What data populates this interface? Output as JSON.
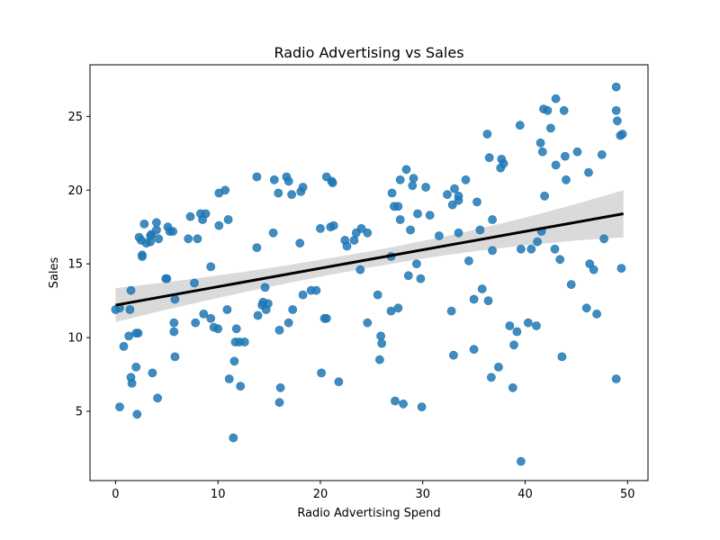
{
  "chart_data": {
    "type": "scatter",
    "title": "Radio Advertising vs Sales",
    "xlabel": "Radio Advertising Spend",
    "ylabel": "Sales",
    "xlim": [
      -2.5,
      52
    ],
    "ylim": [
      0.3,
      28.5
    ],
    "xticks": [
      0,
      10,
      20,
      30,
      40,
      50
    ],
    "yticks": [
      5,
      10,
      15,
      20,
      25
    ],
    "grid": false,
    "point_color": "#1f77b4",
    "regression": {
      "x_range": [
        0,
        49.6
      ],
      "y_range": [
        12.2,
        18.4
      ],
      "line_color": "#000000",
      "ci_color": "#d3d3d3",
      "ci_lower": [
        11.1,
        16.8
      ],
      "ci_upper": [
        13.4,
        20.0
      ]
    },
    "points": [
      [
        0.0,
        11.9
      ],
      [
        0.4,
        12.0
      ],
      [
        0.4,
        5.3
      ],
      [
        0.8,
        9.4
      ],
      [
        1.3,
        10.1
      ],
      [
        1.4,
        11.9
      ],
      [
        1.5,
        13.2
      ],
      [
        1.5,
        7.3
      ],
      [
        1.6,
        6.9
      ],
      [
        2.0,
        10.3
      ],
      [
        2.2,
        10.3
      ],
      [
        2.0,
        8.0
      ],
      [
        2.1,
        4.8
      ],
      [
        2.3,
        16.8
      ],
      [
        2.5,
        16.6
      ],
      [
        2.6,
        15.6
      ],
      [
        2.6,
        15.5
      ],
      [
        2.8,
        17.7
      ],
      [
        3.0,
        16.4
      ],
      [
        3.4,
        16.5
      ],
      [
        3.4,
        16.9
      ],
      [
        3.5,
        17.0
      ],
      [
        3.6,
        7.6
      ],
      [
        4.0,
        17.8
      ],
      [
        4.0,
        17.3
      ],
      [
        4.1,
        5.9
      ],
      [
        4.2,
        16.7
      ],
      [
        4.9,
        14.0
      ],
      [
        5.0,
        14.0
      ],
      [
        5.1,
        17.5
      ],
      [
        5.3,
        17.2
      ],
      [
        5.6,
        17.2
      ],
      [
        5.7,
        10.4
      ],
      [
        5.7,
        11.0
      ],
      [
        5.8,
        8.7
      ],
      [
        5.8,
        12.6
      ],
      [
        7.1,
        16.7
      ],
      [
        7.3,
        18.2
      ],
      [
        7.7,
        13.7
      ],
      [
        7.8,
        11.0
      ],
      [
        8.0,
        16.7
      ],
      [
        8.3,
        18.4
      ],
      [
        8.5,
        18.0
      ],
      [
        8.6,
        11.6
      ],
      [
        8.8,
        18.4
      ],
      [
        9.3,
        11.3
      ],
      [
        9.3,
        14.8
      ],
      [
        9.6,
        10.7
      ],
      [
        10.0,
        10.6
      ],
      [
        10.1,
        17.6
      ],
      [
        10.1,
        19.8
      ],
      [
        10.7,
        20.0
      ],
      [
        10.9,
        11.9
      ],
      [
        11.0,
        18.0
      ],
      [
        11.1,
        7.2
      ],
      [
        11.5,
        3.2
      ],
      [
        11.6,
        8.4
      ],
      [
        11.7,
        9.7
      ],
      [
        11.8,
        10.6
      ],
      [
        12.1,
        9.7
      ],
      [
        12.2,
        6.7
      ],
      [
        12.6,
        9.7
      ],
      [
        13.8,
        20.9
      ],
      [
        13.8,
        16.1
      ],
      [
        13.9,
        11.5
      ],
      [
        14.3,
        12.2
      ],
      [
        14.4,
        12.4
      ],
      [
        14.6,
        13.4
      ],
      [
        14.7,
        11.9
      ],
      [
        14.9,
        12.3
      ],
      [
        15.4,
        17.1
      ],
      [
        15.5,
        20.7
      ],
      [
        15.9,
        19.8
      ],
      [
        16.0,
        10.5
      ],
      [
        16.0,
        5.6
      ],
      [
        16.1,
        6.6
      ],
      [
        16.7,
        20.9
      ],
      [
        16.9,
        20.6
      ],
      [
        16.9,
        11.0
      ],
      [
        17.2,
        19.7
      ],
      [
        17.3,
        11.9
      ],
      [
        18.0,
        16.4
      ],
      [
        18.1,
        19.9
      ],
      [
        18.3,
        20.2
      ],
      [
        18.3,
        12.9
      ],
      [
        19.1,
        13.2
      ],
      [
        19.6,
        13.2
      ],
      [
        20.0,
        17.4
      ],
      [
        20.1,
        7.6
      ],
      [
        20.4,
        11.3
      ],
      [
        20.6,
        11.3
      ],
      [
        20.6,
        20.9
      ],
      [
        21.0,
        17.5
      ],
      [
        21.1,
        20.6
      ],
      [
        21.2,
        20.5
      ],
      [
        21.3,
        17.6
      ],
      [
        21.8,
        7.0
      ],
      [
        22.4,
        16.6
      ],
      [
        22.6,
        16.2
      ],
      [
        23.3,
        16.6
      ],
      [
        23.5,
        17.1
      ],
      [
        23.9,
        14.6
      ],
      [
        24.0,
        17.4
      ],
      [
        24.6,
        11.0
      ],
      [
        24.6,
        17.1
      ],
      [
        25.6,
        12.9
      ],
      [
        25.8,
        8.5
      ],
      [
        26.0,
        9.6
      ],
      [
        25.9,
        10.1
      ],
      [
        26.9,
        11.8
      ],
      [
        26.9,
        15.5
      ],
      [
        27.0,
        19.8
      ],
      [
        27.2,
        18.9
      ],
      [
        27.3,
        5.7
      ],
      [
        27.6,
        12.0
      ],
      [
        27.6,
        18.9
      ],
      [
        27.8,
        18.0
      ],
      [
        27.8,
        20.7
      ],
      [
        28.1,
        5.5
      ],
      [
        28.4,
        21.4
      ],
      [
        28.6,
        14.2
      ],
      [
        28.8,
        17.3
      ],
      [
        29.0,
        20.3
      ],
      [
        29.1,
        20.8
      ],
      [
        29.4,
        15.0
      ],
      [
        29.5,
        18.4
      ],
      [
        29.8,
        14.0
      ],
      [
        29.9,
        5.3
      ],
      [
        30.3,
        20.2
      ],
      [
        30.7,
        18.3
      ],
      [
        31.6,
        16.9
      ],
      [
        32.4,
        19.7
      ],
      [
        32.8,
        11.8
      ],
      [
        32.9,
        19.0
      ],
      [
        33.0,
        8.8
      ],
      [
        33.1,
        20.1
      ],
      [
        33.5,
        17.1
      ],
      [
        33.5,
        19.6
      ],
      [
        33.5,
        19.3
      ],
      [
        34.2,
        20.7
      ],
      [
        34.5,
        15.2
      ],
      [
        35.0,
        12.6
      ],
      [
        35.0,
        9.2
      ],
      [
        35.3,
        19.2
      ],
      [
        35.6,
        17.3
      ],
      [
        35.8,
        13.3
      ],
      [
        36.3,
        23.8
      ],
      [
        36.5,
        22.2
      ],
      [
        36.4,
        12.5
      ],
      [
        36.7,
        7.3
      ],
      [
        36.8,
        18.0
      ],
      [
        36.8,
        15.9
      ],
      [
        37.4,
        8.0
      ],
      [
        37.6,
        21.5
      ],
      [
        37.7,
        22.1
      ],
      [
        37.9,
        21.8
      ],
      [
        38.5,
        10.8
      ],
      [
        38.8,
        6.6
      ],
      [
        38.9,
        9.5
      ],
      [
        39.2,
        10.4
      ],
      [
        39.5,
        24.4
      ],
      [
        39.6,
        1.6
      ],
      [
        39.6,
        16.0
      ],
      [
        40.3,
        11.0
      ],
      [
        40.6,
        16.0
      ],
      [
        41.1,
        10.8
      ],
      [
        41.2,
        16.5
      ],
      [
        41.5,
        23.2
      ],
      [
        41.6,
        17.2
      ],
      [
        41.7,
        22.6
      ],
      [
        41.8,
        25.5
      ],
      [
        41.9,
        19.6
      ],
      [
        42.2,
        25.4
      ],
      [
        42.5,
        24.2
      ],
      [
        42.9,
        16.0
      ],
      [
        43.0,
        26.2
      ],
      [
        43.0,
        21.7
      ],
      [
        43.4,
        15.3
      ],
      [
        43.6,
        8.7
      ],
      [
        43.8,
        25.4
      ],
      [
        43.9,
        22.3
      ],
      [
        44.0,
        20.7
      ],
      [
        44.5,
        13.6
      ],
      [
        45.1,
        22.6
      ],
      [
        46.0,
        12.0
      ],
      [
        46.2,
        21.2
      ],
      [
        46.3,
        15.0
      ],
      [
        46.7,
        14.6
      ],
      [
        47.0,
        11.6
      ],
      [
        47.5,
        22.4
      ],
      [
        47.7,
        16.7
      ],
      [
        48.9,
        27.0
      ],
      [
        48.9,
        25.4
      ],
      [
        49.0,
        24.7
      ],
      [
        48.9,
        7.2
      ],
      [
        49.3,
        23.7
      ],
      [
        49.5,
        23.8
      ],
      [
        49.4,
        14.7
      ]
    ]
  }
}
